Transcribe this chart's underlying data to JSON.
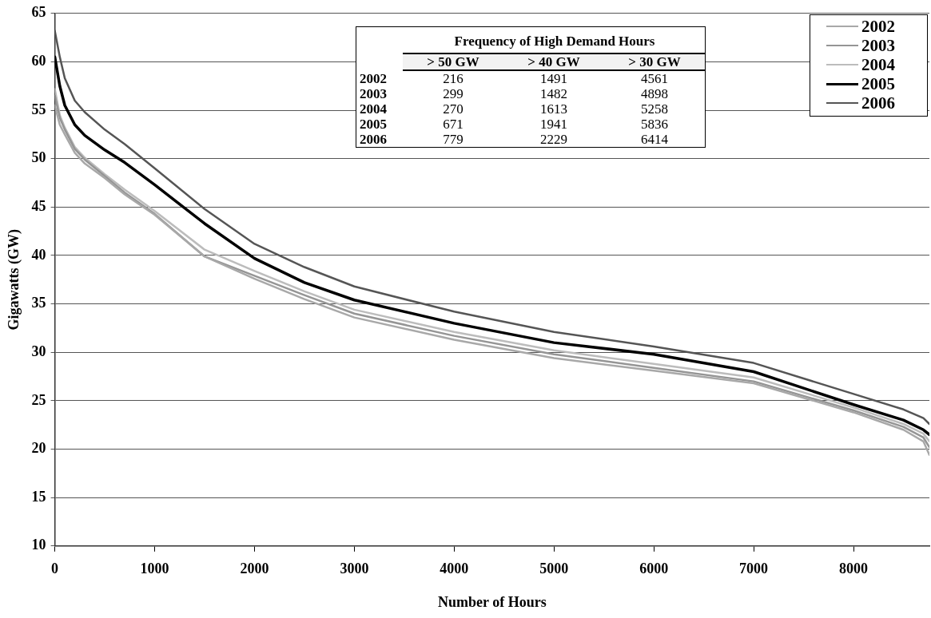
{
  "chart_data": {
    "type": "line",
    "xlabel": "Number of Hours",
    "ylabel": "Gigawatts (GW)",
    "x": [
      0,
      50,
      100,
      200,
      300,
      500,
      700,
      1000,
      1500,
      2000,
      2500,
      3000,
      4000,
      5000,
      6000,
      7000,
      8000,
      8500,
      8700,
      8760
    ],
    "series": [
      {
        "name": "2002",
        "color": "#a8a8a8",
        "values": [
          55.5,
          53.5,
          52.5,
          50.6,
          49.5,
          48.0,
          46.3,
          44.2,
          39.9,
          37.6,
          35.5,
          33.6,
          31.3,
          29.4,
          28.1,
          26.8,
          23.8,
          22.0,
          20.8,
          19.4
        ]
      },
      {
        "name": "2003",
        "color": "#959595",
        "values": [
          56.5,
          54.2,
          53.0,
          51.0,
          49.9,
          48.2,
          46.5,
          44.3,
          39.9,
          37.9,
          35.9,
          34.0,
          31.7,
          29.8,
          28.4,
          27.0,
          24.0,
          22.3,
          21.2,
          20.2
        ]
      },
      {
        "name": "2004",
        "color": "#bcbcbc",
        "values": [
          57.2,
          54.5,
          53.2,
          51.2,
          50.1,
          48.4,
          46.8,
          44.6,
          40.6,
          38.4,
          36.3,
          34.4,
          32.1,
          30.2,
          28.8,
          27.4,
          24.3,
          22.6,
          21.6,
          20.8
        ]
      },
      {
        "name": "2005",
        "color": "#000000",
        "values": [
          60.5,
          57.5,
          55.5,
          53.5,
          52.4,
          50.9,
          49.6,
          47.3,
          43.3,
          39.7,
          37.2,
          35.4,
          33.0,
          31.0,
          29.8,
          28.0,
          24.6,
          23.0,
          22.0,
          21.5
        ]
      },
      {
        "name": "2006",
        "color": "#555555",
        "values": [
          63.2,
          60.5,
          58.3,
          56.0,
          54.8,
          53.0,
          51.5,
          49.0,
          44.8,
          41.2,
          38.8,
          36.8,
          34.2,
          32.1,
          30.6,
          28.9,
          25.7,
          24.1,
          23.2,
          22.6
        ]
      }
    ],
    "xlim": [
      0,
      8760
    ],
    "xticks": [
      0,
      1000,
      2000,
      3000,
      4000,
      5000,
      6000,
      7000,
      8000
    ],
    "ylim": [
      10,
      65
    ],
    "yticks": [
      10,
      15,
      20,
      25,
      30,
      35,
      40,
      45,
      50,
      55,
      60,
      65
    ],
    "grid": "y",
    "legend": "top right",
    "marker": "none",
    "line_style": "solid",
    "annotations": [
      "Frequency of High Demand Hours",
      "> 50 GW",
      "> 40 GW",
      "> 30 GW",
      "2002",
      "216",
      "1491",
      "4561",
      "2003",
      "299",
      "1482",
      "4898",
      "2004",
      "270",
      "1613",
      "5258",
      "2005",
      "671",
      "1941",
      "5836",
      "2006",
      "779",
      "2229",
      "6414"
    ]
  }
}
